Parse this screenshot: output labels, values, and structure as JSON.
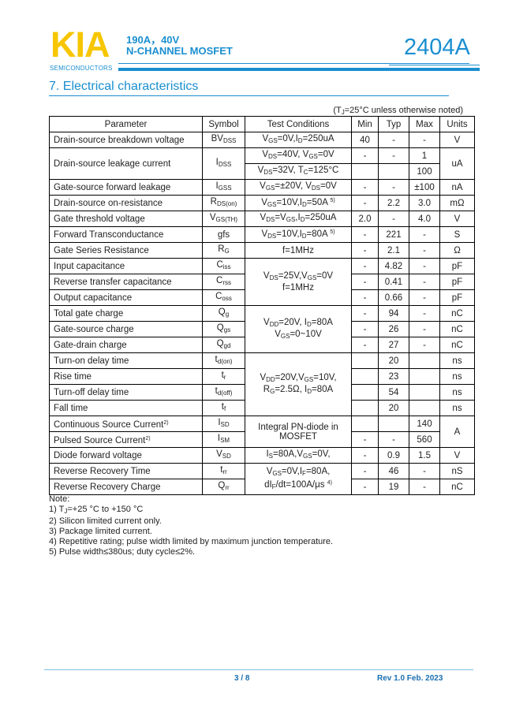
{
  "header": {
    "logo_text": "KIA",
    "logo_subtext": "SEMICONDUCTORS",
    "rating": "190A，40V",
    "device_type": "N-CHANNEL MOSFET",
    "part_number": "2404A"
  },
  "section_title": "7.  Electrical characteristics",
  "condition_note": "(T{J}=25°C unless otherwise noted)",
  "table": {
    "columns": [
      "Parameter",
      "Symbol",
      "Test Conditions",
      "Min",
      "Typ",
      "Max",
      "Units"
    ],
    "rows": [
      [
        "Drain-source breakdown voltage",
        "BV{DSS}",
        "V{GS}=0V,I{D}=250uA",
        "40",
        "-",
        "-",
        "V"
      ],
      [
        "Drain-source leakage current",
        "I{DSS}",
        "V{DS}=40V, V{GS}=0V",
        "-",
        "-",
        "1",
        "uA"
      ],
      [
        null,
        null,
        "V{DS}=32V, T{C}=125°C",
        "",
        "",
        "100",
        null
      ],
      [
        "Gate-source forward leakage",
        "I{GSS}",
        "V{GS}=±20V, V{DS}=0V",
        "-",
        "-",
        "±100",
        "nA"
      ],
      [
        "Drain-source on-resistance",
        "R{DS(on)}",
        "V{GS}=10V,I{D}=50A ^{5)}",
        "-",
        "2.2",
        "3.0",
        "mΩ"
      ],
      [
        "Gate threshold voltage",
        "V{GS(TH)}",
        "V{DS}=V{GS},I{D}=250uA",
        "2.0",
        "-",
        "4.0",
        "V"
      ],
      [
        "Forward Transconductance",
        "gfs",
        "V{DS}=10V,I{D}=80A ^{5)}",
        "-",
        "221",
        "-",
        "S"
      ],
      [
        "Gate Series Resistance",
        "R{G}",
        "f=1MHz",
        "-",
        "2.1",
        "-",
        "Ω"
      ],
      [
        "Input capacitance",
        "C{iss}",
        "V{DS}=25V,V{GS}=0V|f=1MHz",
        "-",
        "4.82",
        "-",
        "pF"
      ],
      [
        "Reverse transfer capacitance",
        "C{rss}",
        null,
        "-",
        "0.41",
        "-",
        "pF"
      ],
      [
        "Output capacitance",
        "C{oss}",
        null,
        "-",
        "0.66",
        "-",
        "pF"
      ],
      [
        "Total gate charge",
        "Q{g}",
        "V{DD}=20V, I{D}=80A|V{GS}=0~10V",
        "-",
        "94",
        "-",
        "nC"
      ],
      [
        "Gate-source charge",
        "Q{gs}",
        null,
        "-",
        "26",
        "-",
        "nC"
      ],
      [
        "Gate-drain charge",
        "Q{gd}",
        null,
        "-",
        "27",
        "-",
        "nC"
      ],
      [
        "Turn-on delay time",
        "t{d(on)}",
        "V{DD}=20V,V{GS}=10V,|R{G}=2.5Ω, I{D}=80A",
        "",
        "20",
        "",
        "ns"
      ],
      [
        "Rise time",
        "t{r}",
        null,
        "",
        "23",
        "",
        "ns"
      ],
      [
        "Turn-off delay time",
        "t{d(off)}",
        null,
        "",
        "54",
        "",
        "ns"
      ],
      [
        "Fall time",
        "t{f}",
        null,
        "",
        "20",
        "",
        "ns"
      ],
      [
        "Continuous Source Current^{2)}",
        "I{SD}",
        "Integral PN-diode in|MOSFET",
        "",
        "",
        "140",
        "A"
      ],
      [
        "Pulsed Source Current^{2)}",
        "I{SM}",
        null,
        "-",
        "-",
        "560",
        null
      ],
      [
        "Diode forward voltage",
        "V{SD}",
        "I{S}=80A,V{GS}=0V,",
        "-",
        "0.9",
        "1.5",
        "V"
      ],
      [
        "Reverse Recovery Time",
        "t{rr}",
        "V{GS}=0V,I{F}=80A,|dI{F}/dt=100A/μs ^{4)}",
        "-",
        "46",
        "-",
        "nS"
      ],
      [
        "Reverse Recovery Charge",
        "Q{rr}",
        null,
        "-",
        "19",
        "-",
        "nC"
      ]
    ]
  },
  "notes": [
    "Note:",
    "1) T{J}=+25 °C to +150 °C",
    "2) Silicon limited current only.",
    "3) Package limited current.",
    "4) Repetitive rating; pulse width limited by maximum junction temperature.",
    "5) Pulse width≤380us; duty cycle≤2%."
  ],
  "footer": {
    "page": "3 / 8",
    "revision": "Rev 1.0 Feb. 2023"
  },
  "colors": {
    "brand_blue": "#1a8fd0",
    "logo_yellow": "#f7c600"
  }
}
